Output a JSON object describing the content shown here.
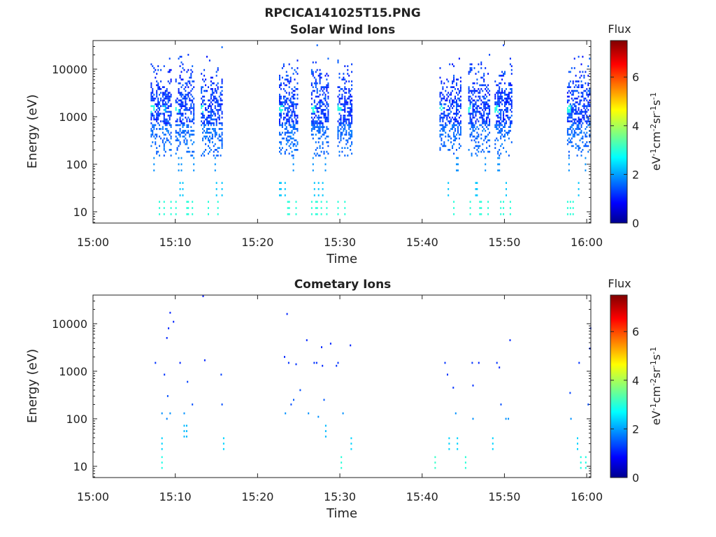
{
  "figure_title": "RPCICA141025T15.PNG",
  "chart_data": [
    {
      "type": "heatmap",
      "title": "Solar Wind Ions",
      "xlabel": "Time",
      "ylabel": "Energy (eV)",
      "x_ticks": [
        "15:00",
        "15:10",
        "15:20",
        "15:30",
        "15:40",
        "15:50",
        "16:00"
      ],
      "x_range_minutes": [
        0,
        60.5
      ],
      "y_scale": "log",
      "y_range": [
        5.8,
        40000
      ],
      "y_ticks": [
        10,
        100,
        1000,
        10000
      ],
      "y_tick_labels": [
        "10",
        "100",
        "1000",
        "10000"
      ],
      "colorbar": {
        "title": "Flux",
        "label": "eV-1cm-2sr-1s-1",
        "range": [
          0,
          7.5
        ],
        "ticks": [
          0,
          2,
          4,
          6
        ],
        "colormap": "jet"
      },
      "bursts": [
        {
          "start_min": 7.0,
          "end_min": 8.4,
          "peak_energy_eV": 1500,
          "peak_flux": 3.0
        },
        {
          "start_min": 8.4,
          "end_min": 9.5,
          "peak_energy_eV": 1500,
          "peak_flux": 2.2
        },
        {
          "start_min": 10.0,
          "end_min": 12.3,
          "peak_energy_eV": 1500,
          "peak_flux": 3.0
        },
        {
          "start_min": 13.1,
          "end_min": 15.8,
          "peak_energy_eV": 1500,
          "peak_flux": 3.0
        },
        {
          "start_min": 22.6,
          "end_min": 25.0,
          "peak_energy_eV": 1500,
          "peak_flux": 3.0
        },
        {
          "start_min": 26.5,
          "end_min": 28.6,
          "peak_energy_eV": 1500,
          "peak_flux": 3.0
        },
        {
          "start_min": 29.7,
          "end_min": 31.6,
          "peak_energy_eV": 1500,
          "peak_flux": 3.0
        },
        {
          "start_min": 42.1,
          "end_min": 44.8,
          "peak_energy_eV": 1500,
          "peak_flux": 3.0
        },
        {
          "start_min": 45.6,
          "end_min": 48.3,
          "peak_energy_eV": 1500,
          "peak_flux": 3.0
        },
        {
          "start_min": 48.8,
          "end_min": 51.0,
          "peak_energy_eV": 1500,
          "peak_flux": 3.0
        },
        {
          "start_min": 57.6,
          "end_min": 60.5,
          "peak_energy_eV": 1500,
          "peak_flux": 3.0
        }
      ]
    },
    {
      "type": "heatmap",
      "title": "Cometary Ions",
      "xlabel": "Time",
      "ylabel": "Energy (eV)",
      "x_ticks": [
        "15:00",
        "15:10",
        "15:20",
        "15:30",
        "15:40",
        "15:50",
        "16:00"
      ],
      "x_range_minutes": [
        0,
        60.5
      ],
      "y_scale": "log",
      "y_range": [
        5.8,
        40000
      ],
      "y_ticks": [
        10,
        100,
        1000,
        10000
      ],
      "y_tick_labels": [
        "10",
        "100",
        "1000",
        "10000"
      ],
      "colorbar": {
        "title": "Flux",
        "label": "eV-1cm-2sr-1s-1",
        "range": [
          0,
          7.5
        ],
        "ticks": [
          0,
          2,
          4,
          6
        ],
        "colormap": "jet"
      },
      "points": [
        [
          7.5,
          1500,
          1.3
        ],
        [
          8.3,
          130,
          2.0
        ],
        [
          8.3,
          30,
          2.5
        ],
        [
          8.3,
          12,
          3.0
        ],
        [
          8.6,
          850,
          1.3
        ],
        [
          8.9,
          100,
          1.9
        ],
        [
          8.9,
          5000,
          1.2
        ],
        [
          9.0,
          300,
          1.5
        ],
        [
          9.1,
          8000,
          1.2
        ],
        [
          9.3,
          17000,
          1.2
        ],
        [
          9.3,
          130,
          2.0
        ],
        [
          9.7,
          11000,
          1.2
        ],
        [
          10.5,
          1500,
          1.2
        ],
        [
          11.0,
          130,
          2.0
        ],
        [
          11.0,
          55,
          2.3
        ],
        [
          11.3,
          55,
          2.3
        ],
        [
          11.4,
          600,
          1.4
        ],
        [
          12.0,
          200,
          1.5
        ],
        [
          13.5,
          1700,
          1.2
        ],
        [
          13.3,
          38000,
          1.1
        ],
        [
          15.5,
          850,
          1.4
        ],
        [
          15.6,
          200,
          1.5
        ],
        [
          15.8,
          30,
          2.5
        ],
        [
          23.2,
          2000,
          1.2
        ],
        [
          23.3,
          130,
          2.0
        ],
        [
          23.5,
          16000,
          1.2
        ],
        [
          23.7,
          1500,
          1.3
        ],
        [
          24.0,
          200,
          1.5
        ],
        [
          24.3,
          250,
          1.6
        ],
        [
          24.6,
          1400,
          1.3
        ],
        [
          25.1,
          400,
          1.5
        ],
        [
          25.9,
          4500,
          1.2
        ],
        [
          26.1,
          130,
          2.0
        ],
        [
          26.8,
          1500,
          1.3
        ],
        [
          27.1,
          1500,
          1.3
        ],
        [
          27.3,
          110,
          2.0
        ],
        [
          27.7,
          3200,
          1.2
        ],
        [
          27.8,
          1300,
          1.2
        ],
        [
          28.0,
          250,
          1.6
        ],
        [
          28.2,
          55,
          2.3
        ],
        [
          28.8,
          3800,
          1.2
        ],
        [
          29.5,
          1300,
          1.3
        ],
        [
          29.7,
          1500,
          1.3
        ],
        [
          30.1,
          12,
          3.1
        ],
        [
          30.3,
          130,
          2.0
        ],
        [
          31.2,
          3500,
          1.2
        ],
        [
          31.3,
          30,
          2.5
        ],
        [
          41.5,
          12,
          3.2
        ],
        [
          42.7,
          1500,
          1.3
        ],
        [
          43.0,
          850,
          1.3
        ],
        [
          43.2,
          30,
          2.5
        ],
        [
          43.7,
          450,
          1.3
        ],
        [
          44.0,
          130,
          2.0
        ],
        [
          44.2,
          30,
          2.5
        ],
        [
          45.2,
          12,
          3.1
        ],
        [
          46.0,
          1500,
          1.3
        ],
        [
          46.1,
          500,
          1.3
        ],
        [
          46.1,
          100,
          2.0
        ],
        [
          46.8,
          1500,
          1.2
        ],
        [
          48.5,
          30,
          2.5
        ],
        [
          49.0,
          1500,
          1.3
        ],
        [
          49.3,
          1200,
          1.2
        ],
        [
          49.5,
          200,
          1.5
        ],
        [
          50.1,
          100,
          2.0
        ],
        [
          50.4,
          100,
          2.0
        ],
        [
          50.6,
          4500,
          1.2
        ],
        [
          57.9,
          350,
          1.4
        ],
        [
          58.0,
          100,
          2.0
        ],
        [
          58.8,
          30,
          2.5
        ],
        [
          59.0,
          1500,
          1.3
        ],
        [
          59.2,
          12,
          3.0
        ],
        [
          59.8,
          12,
          3.0
        ],
        [
          60.1,
          200,
          1.5
        ],
        [
          60.3,
          3000,
          1.2
        ],
        [
          60.4,
          8000,
          1.2
        ]
      ]
    }
  ]
}
